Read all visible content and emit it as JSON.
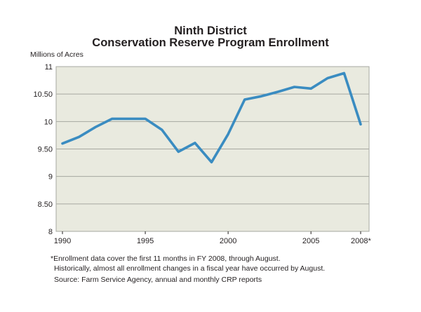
{
  "chart_data": {
    "type": "line",
    "title": "Ninth District",
    "subtitle": "Conservation Reserve Program Enrollment",
    "ylabel": "Millions of Acres",
    "xlabel": "",
    "ylim": [
      8,
      11
    ],
    "xlim": [
      1990,
      2008
    ],
    "x_ticks": [
      1990,
      1995,
      2000,
      2005,
      2008
    ],
    "x_tick_labels": [
      "1990",
      "1995",
      "2000",
      "2005",
      "2008*"
    ],
    "y_ticks": [
      8,
      8.5,
      9,
      9.5,
      10,
      10.5,
      11
    ],
    "y_tick_labels": [
      "8",
      "8.50",
      "9",
      "9.50",
      "10",
      "10.50",
      "11"
    ],
    "grid": true,
    "series": [
      {
        "name": "",
        "x": [
          1990,
          1991,
          1992,
          1993,
          1994,
          1995,
          1996,
          1997,
          1998,
          1999,
          2000,
          2001,
          2002,
          2003,
          2004,
          2005,
          2006,
          2007,
          2008
        ],
        "y": [
          9.6,
          9.72,
          9.9,
          10.05,
          10.05,
          10.05,
          9.85,
          9.45,
          9.61,
          9.26,
          9.77,
          10.4,
          10.46,
          10.54,
          10.63,
          10.6,
          10.79,
          10.88,
          9.95
        ]
      }
    ],
    "colors": {
      "line": "#3a8cc1",
      "plot_background": "#e9eadf",
      "grid": "#a6a8a0"
    }
  },
  "footnotes": [
    "*Enrollment data cover the first 11 months in FY 2008, through August.",
    "Historically, almost all enrollment changes in a fiscal year have occurred by August.",
    "Source: Farm Service Agency, annual and monthly CRP reports"
  ]
}
